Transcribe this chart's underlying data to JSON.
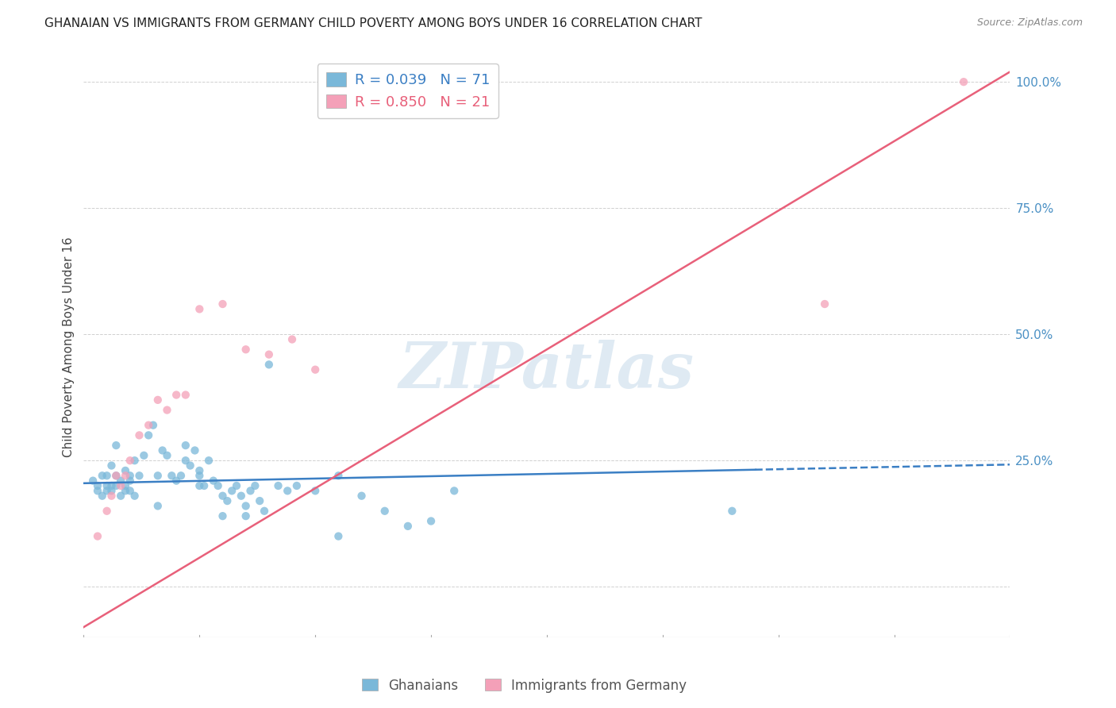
{
  "title": "GHANAIAN VS IMMIGRANTS FROM GERMANY CHILD POVERTY AMONG BOYS UNDER 16 CORRELATION CHART",
  "source": "Source: ZipAtlas.com",
  "ylabel": "Child Poverty Among Boys Under 16",
  "xmin": 0.0,
  "xmax": 0.2,
  "ymin": -0.1,
  "ymax": 1.05,
  "yticks": [
    0.0,
    0.25,
    0.5,
    0.75,
    1.0
  ],
  "ytick_labels": [
    "",
    "25.0%",
    "50.0%",
    "75.0%",
    "100.0%"
  ],
  "legend_blue_r": "R = 0.039",
  "legend_blue_n": "N = 71",
  "legend_pink_r": "R = 0.850",
  "legend_pink_n": "N = 21",
  "blue_color": "#7ab8d9",
  "pink_color": "#f4a0b8",
  "blue_line_color": "#3b7fc4",
  "pink_line_color": "#e8607a",
  "blue_line_solid_end": 0.145,
  "blue_line_y0": 0.205,
  "blue_line_y1": 0.242,
  "pink_line_y0": -0.08,
  "pink_line_y1": 1.02,
  "blue_scatter_x": [
    0.002,
    0.003,
    0.003,
    0.004,
    0.004,
    0.005,
    0.005,
    0.005,
    0.006,
    0.006,
    0.006,
    0.007,
    0.007,
    0.007,
    0.008,
    0.008,
    0.009,
    0.009,
    0.009,
    0.01,
    0.01,
    0.01,
    0.011,
    0.011,
    0.012,
    0.013,
    0.014,
    0.015,
    0.016,
    0.016,
    0.017,
    0.018,
    0.019,
    0.02,
    0.021,
    0.022,
    0.022,
    0.023,
    0.024,
    0.025,
    0.025,
    0.026,
    0.027,
    0.028,
    0.029,
    0.03,
    0.031,
    0.032,
    0.033,
    0.034,
    0.035,
    0.036,
    0.037,
    0.038,
    0.039,
    0.04,
    0.042,
    0.044,
    0.046,
    0.05,
    0.055,
    0.06,
    0.065,
    0.07,
    0.075,
    0.08,
    0.025,
    0.03,
    0.035,
    0.14,
    0.055
  ],
  "blue_scatter_y": [
    0.21,
    0.2,
    0.19,
    0.22,
    0.18,
    0.2,
    0.19,
    0.22,
    0.2,
    0.19,
    0.24,
    0.22,
    0.2,
    0.28,
    0.21,
    0.18,
    0.23,
    0.19,
    0.2,
    0.22,
    0.21,
    0.19,
    0.25,
    0.18,
    0.22,
    0.26,
    0.3,
    0.32,
    0.22,
    0.16,
    0.27,
    0.26,
    0.22,
    0.21,
    0.22,
    0.28,
    0.25,
    0.24,
    0.27,
    0.23,
    0.2,
    0.2,
    0.25,
    0.21,
    0.2,
    0.18,
    0.17,
    0.19,
    0.2,
    0.18,
    0.16,
    0.19,
    0.2,
    0.17,
    0.15,
    0.44,
    0.2,
    0.19,
    0.2,
    0.19,
    0.22,
    0.18,
    0.15,
    0.12,
    0.13,
    0.19,
    0.22,
    0.14,
    0.14,
    0.15,
    0.1
  ],
  "pink_scatter_x": [
    0.003,
    0.005,
    0.006,
    0.007,
    0.008,
    0.009,
    0.01,
    0.012,
    0.014,
    0.016,
    0.018,
    0.02,
    0.022,
    0.025,
    0.03,
    0.035,
    0.04,
    0.045,
    0.05,
    0.16,
    0.19
  ],
  "pink_scatter_y": [
    0.1,
    0.15,
    0.18,
    0.22,
    0.2,
    0.22,
    0.25,
    0.3,
    0.32,
    0.37,
    0.35,
    0.38,
    0.38,
    0.55,
    0.56,
    0.47,
    0.46,
    0.49,
    0.43,
    0.56,
    1.0
  ],
  "watermark_text": "ZIPatlas",
  "watermark_color": "#c5daea",
  "background_color": "#ffffff",
  "grid_color": "#d0d0d0"
}
